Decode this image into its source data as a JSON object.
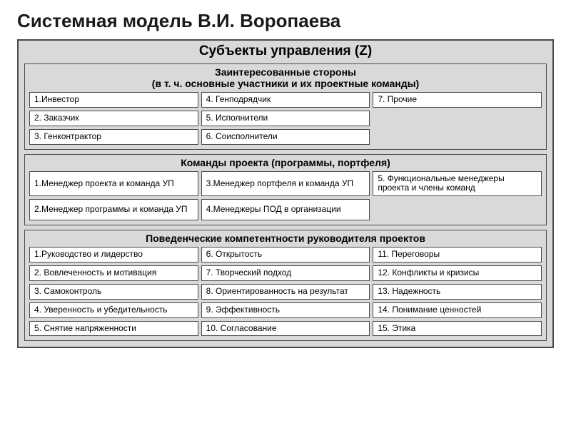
{
  "type": "infographic",
  "background_color": "#ffffff",
  "panel_bg": "#d9d9d9",
  "cell_bg": "#ffffff",
  "border_color": "#4a4a4a",
  "title": "Системная модель В.И. Воропаева",
  "title_fontsize": 26,
  "panel": {
    "title": "Субъекты управления (Z)",
    "title_fontsize": 19
  },
  "sections": {
    "stakeholders": {
      "header_line1": "Заинтересованные стороны",
      "header_line2": "(в т. ч. основные участники и их проектные команды)",
      "items": [
        "1.Инвестор",
        "4. Генподрядчик",
        "7. Прочие",
        "2. Заказчик",
        "5. Исполнители",
        "",
        "3. Генконтрактор",
        "6. Соисполнители",
        ""
      ]
    },
    "teams": {
      "header": "Команды проекта (программы, портфеля)",
      "items": [
        "1.Менеджер проекта и команда УП",
        "3.Менеджер портфеля и команда УП",
        "5. Функциональные менеджеры проекта и члены команд",
        "2.Менеджер  программы и команда УП",
        "4.Менеджеры ПОД в организации",
        ""
      ]
    },
    "competencies": {
      "header": "Поведенческие компетентности руководителя проектов",
      "items": [
        "1.Руководство и лидерство",
        "6. Открытость",
        "11. Переговоры",
        "2. Вовлеченность и мотивация",
        "7. Творческий подход",
        "12. Конфликты и кризисы",
        "3. Самоконтроль",
        "8. Ориентированность на результат",
        "13. Надежность",
        "4. Уверенность и убедительность",
        "9. Эффективность",
        "14. Понимание ценностей",
        "5. Снятие напряженности",
        "10. Согласование",
        "15. Этика"
      ]
    }
  }
}
